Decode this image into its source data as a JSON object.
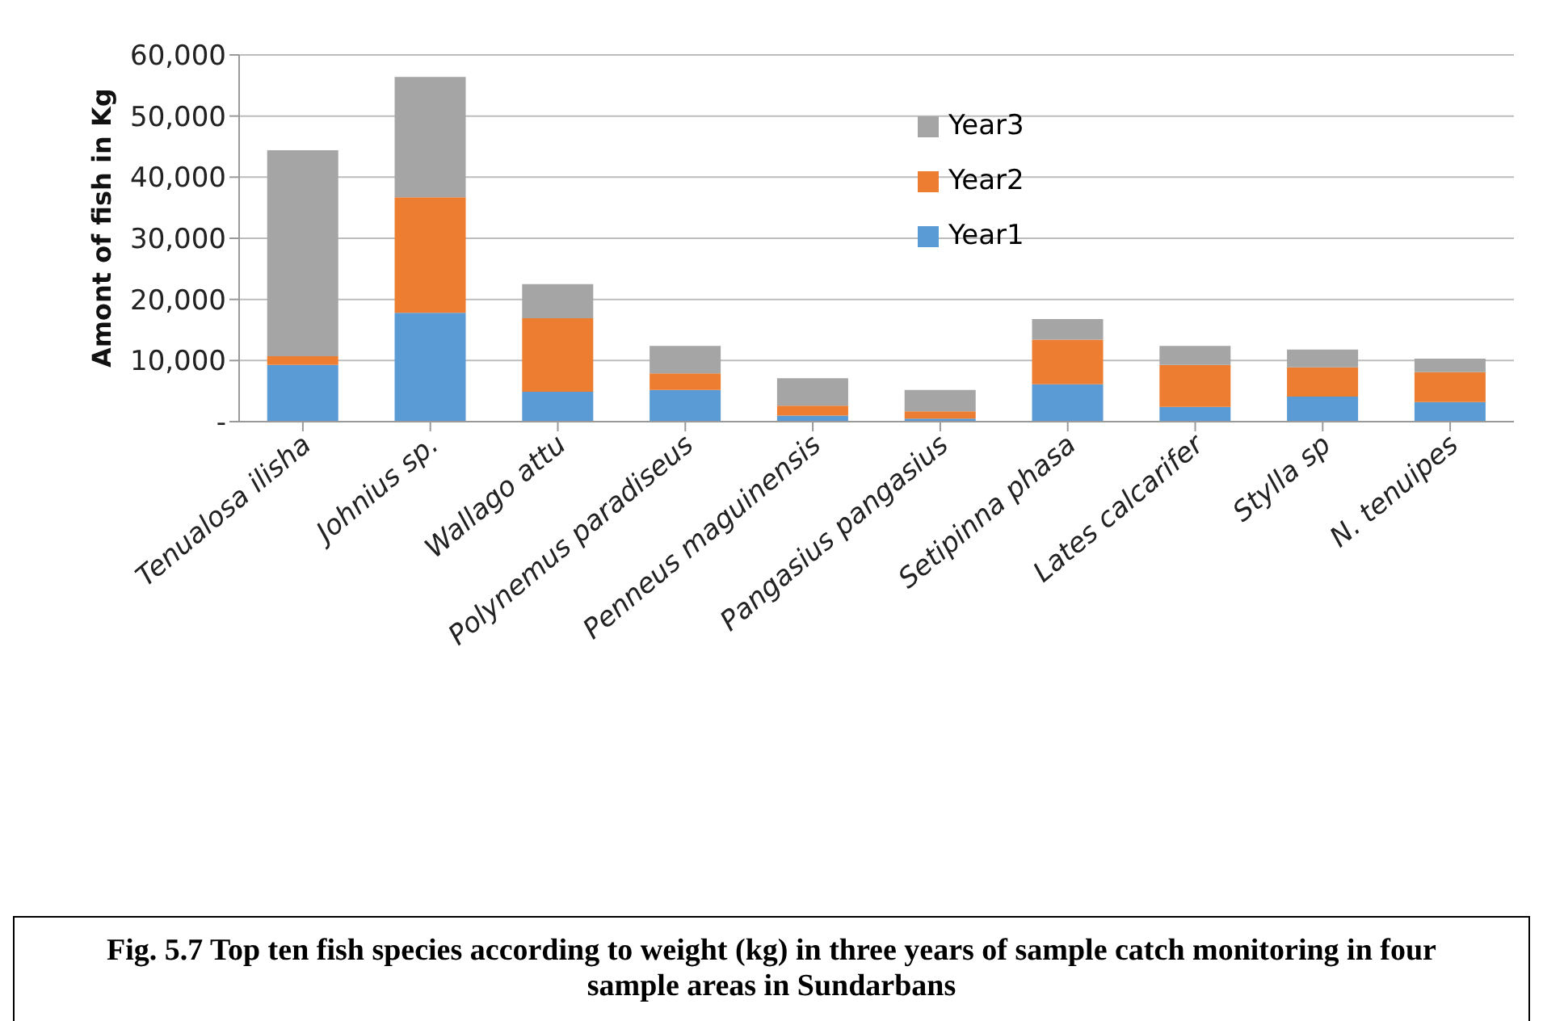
{
  "chart_data": {
    "type": "bar",
    "stacked": true,
    "ylabel": "Amont of fish in Kg",
    "categories": [
      "Tenualosa ilisha",
      "Johnius sp.",
      "Wallago attu",
      "Polynemus paradiseus",
      "Penneus maguinensis",
      "Pangasius pangasius",
      "Setipinna phasa",
      "Lates calcarifer",
      "Stylla sp",
      "N. tenuipes"
    ],
    "series": [
      {
        "name": "Year1",
        "color": "#5b9bd5",
        "values": [
          9300,
          17800,
          4900,
          5200,
          1000,
          500,
          6100,
          2400,
          4100,
          3200
        ]
      },
      {
        "name": "Year2",
        "color": "#ed7d31",
        "values": [
          1400,
          18900,
          12000,
          2700,
          1600,
          1200,
          7300,
          6900,
          4800,
          4900
        ]
      },
      {
        "name": "Year3",
        "color": "#a5a5a5",
        "values": [
          33700,
          19700,
          5600,
          4500,
          4500,
          3500,
          3400,
          3100,
          2900,
          2200
        ]
      }
    ],
    "ylim": [
      0,
      60000
    ],
    "yticks": [
      {
        "value": 0,
        "label": "-"
      },
      {
        "value": 10000,
        "label": "10,000"
      },
      {
        "value": 20000,
        "label": "20,000"
      },
      {
        "value": 30000,
        "label": "30,000"
      },
      {
        "value": 40000,
        "label": "40,000"
      },
      {
        "value": 50000,
        "label": "50,000"
      },
      {
        "value": 60000,
        "label": "60,000"
      }
    ],
    "grid": "y",
    "legend": "top",
    "annotations": [
      "Fig. 5.7  Top ten fish species according to weight (kg) in three years of sample catch monitoring in four sample areas in Sundarbans"
    ]
  }
}
